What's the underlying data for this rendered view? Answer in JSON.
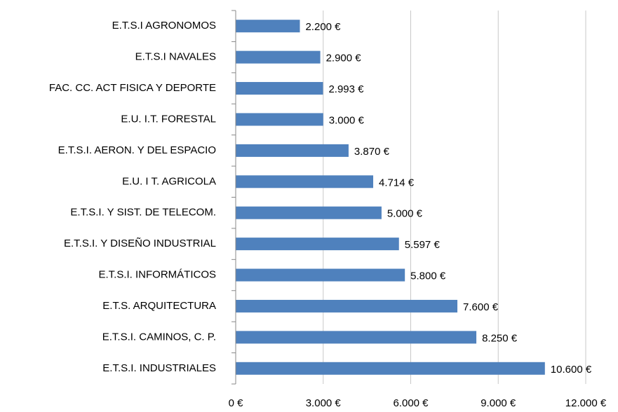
{
  "chart_data": {
    "type": "bar",
    "orientation": "horizontal",
    "categories": [
      "E.T.S.I AGRONOMOS",
      "E.T.S.I NAVALES",
      "FAC. CC. ACT FISICA Y DEPORTE",
      "E.U. I.T.  FORESTAL",
      "E.T.S.I.  AERON.  Y DEL ESPACIO",
      "E.U.  I  T. AGRICOLA",
      "E.T.S.I.   Y SIST. DE TELECOM.",
      "E.T.S.I.   Y DISEÑO INDUSTRIAL",
      "E.T.S.I.   INFORMÁTICOS",
      "E.T.S. ARQUITECTURA",
      "E.T.S.I.  CAMINOS, C. P.",
      "E.T.S.I.  INDUSTRIALES"
    ],
    "values": [
      2200,
      2900,
      2993,
      3000,
      3870,
      4714,
      5000,
      5597,
      5800,
      7600,
      8250,
      10600
    ],
    "value_labels": [
      "2.200 €",
      "2.900 €",
      "2.993 €",
      "3.000 €",
      "3.870 €",
      "4.714 €",
      "5.000 €",
      "5.597 €",
      "5.800 €",
      "7.600 €",
      "8.250 €",
      "10.600 €"
    ],
    "color": "#4f81bd",
    "xlim": [
      0,
      12000
    ],
    "xticks": [
      {
        "value": 0,
        "label": "0 €"
      },
      {
        "value": 3000,
        "label": "3.000 €"
      },
      {
        "value": 6000,
        "label": "6.000 €"
      },
      {
        "value": 9000,
        "label": "9.000 €"
      },
      {
        "value": 12000,
        "label": "12.000 €"
      }
    ],
    "grid": true
  }
}
